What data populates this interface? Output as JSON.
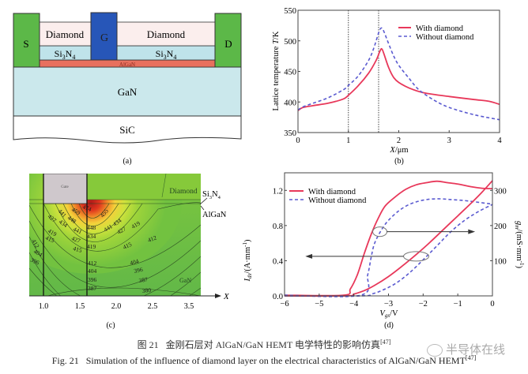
{
  "figure_a": {
    "panel_label": "(a)",
    "layers": {
      "source": "S",
      "gate": "G",
      "drain": "D",
      "diamond_left": "Diamond",
      "diamond_right": "Diamond",
      "si3n4_left": "Si",
      "si3n4_right": "Si",
      "si3n4_sub1": "3",
      "si3n4_N": "N",
      "si3n4_sub2": "4",
      "algan": "AlGaN",
      "gan": "GaN",
      "sic": "SiC"
    },
    "colors": {
      "contact": "#5cb848",
      "gate": "#2756b8",
      "diamond": "#fbeeed",
      "si3n4": "#bfe3ea",
      "algan": "#e8705e",
      "gan": "#cbe8ec",
      "sic": "#ffffff"
    }
  },
  "figure_c": {
    "panel_label": "(c)",
    "gate_label": "Gate",
    "diamond_label": "Diamond",
    "si3n4_label": "Si",
    "si3n4_sub1": "3",
    "si3n4_N": "N",
    "si3n4_sub2": "4",
    "algan_label": "AlGaN",
    "gan_label": "GaN",
    "x_axis_label": "X",
    "x_ticks": [
      "1.0",
      "1.5",
      "2.0",
      "2.5",
      "3.5"
    ],
    "contour_labels": [
      "412",
      "404",
      "396",
      "427",
      "419",
      "415",
      "441",
      "434",
      "448",
      "459",
      "474",
      "455",
      "448",
      "441",
      "434",
      "427",
      "419",
      "415",
      "412",
      "404",
      "396",
      "387",
      "380",
      "412",
      "404",
      "396",
      "387",
      "441",
      "427",
      "419",
      "427",
      "434",
      "419",
      "415",
      "412"
    ]
  },
  "chart_data": [
    {
      "id": "b",
      "type": "line",
      "panel_label": "(b)",
      "title": "",
      "xlabel_italic": "X",
      "xlabel_unit": "/μm",
      "ylabel_prefix": "Lattice temperature ",
      "ylabel_italic": "T",
      "ylabel_unit": "/K",
      "xlim": [
        0,
        4
      ],
      "ylim": [
        350,
        550
      ],
      "x_ticks": [
        0,
        1,
        2,
        3,
        4
      ],
      "y_ticks": [
        350,
        400,
        450,
        500,
        550
      ],
      "vlines": [
        1.0,
        1.6
      ],
      "legend_position": "top-right",
      "series": [
        {
          "name": "With diamond",
          "style": "solid",
          "color": "#e8385a",
          "x": [
            0,
            0.1,
            0.3,
            0.6,
            0.9,
            1.0,
            1.2,
            1.4,
            1.55,
            1.62,
            1.66,
            1.7,
            1.8,
            1.9,
            2.0,
            2.2,
            2.5,
            3.0,
            3.5,
            3.8,
            4.0
          ],
          "y": [
            386,
            391,
            394,
            398,
            405,
            411,
            427,
            447,
            468,
            482,
            487,
            480,
            456,
            440,
            432,
            423,
            415,
            409,
            404,
            401,
            396
          ]
        },
        {
          "name": "Without diamond",
          "style": "dashed",
          "color": "#5a5ad0",
          "x": [
            0,
            0.1,
            0.3,
            0.6,
            0.9,
            1.0,
            1.2,
            1.4,
            1.5,
            1.6,
            1.65,
            1.7,
            1.8,
            1.9,
            2.0,
            2.2,
            2.4,
            2.7,
            3.0,
            3.5,
            4.0
          ],
          "y": [
            387,
            392,
            398,
            407,
            420,
            427,
            443,
            468,
            487,
            513,
            521,
            516,
            495,
            475,
            460,
            439,
            420,
            403,
            391,
            379,
            371
          ]
        }
      ]
    },
    {
      "id": "d",
      "type": "line",
      "panel_label": "(d)",
      "title": "",
      "xlabel_italic": "V",
      "xlabel_sub": "gs",
      "xlabel_unit": "/V",
      "ylabel_left_italic": "I",
      "ylabel_left_sub": "ds",
      "ylabel_left_unit": "/(A·mm",
      "ylabel_left_exp": "-1",
      "ylabel_left_close": ")",
      "ylabel_right_italic": "g",
      "ylabel_right_sub": "m",
      "ylabel_right_unit": "/(mS·mm",
      "ylabel_right_exp": "-1",
      "ylabel_right_close": ")",
      "xlim": [
        -6,
        0
      ],
      "ylim_left": [
        0,
        1.4
      ],
      "ylim_right": [
        0,
        350
      ],
      "x_ticks": [
        -6,
        -5,
        -4,
        -3,
        -2,
        -1,
        0
      ],
      "x_tick_labels": [
        "−6",
        "−5",
        "−4",
        "−3",
        "−2",
        "−1",
        "0"
      ],
      "y_left_ticks": [
        0.0,
        0.4,
        0.8,
        1.2
      ],
      "y_left_tick_labels": [
        "0.0",
        "0.4",
        "0.8",
        "1.2"
      ],
      "y_right_ticks": [
        100,
        200,
        300
      ],
      "legend_position": "top-left",
      "series": [
        {
          "name": "With diamond",
          "role": "gm",
          "axis": "right",
          "style": "solid",
          "color": "#e8385a",
          "x": [
            -6,
            -4.3,
            -4.1,
            -3.9,
            -3.7,
            -3.5,
            -3.3,
            -3.1,
            -2.8,
            -2.5,
            -2.2,
            -1.9,
            -1.6,
            -1.3,
            -1.0,
            -0.6,
            -0.3,
            0
          ],
          "y": [
            2,
            2,
            20,
            60,
            120,
            175,
            220,
            255,
            282,
            303,
            316,
            322,
            326,
            322,
            318,
            310,
            306,
            305
          ]
        },
        {
          "name": "Without diamond",
          "role": "gm",
          "axis": "right",
          "style": "dashed",
          "color": "#5a5ad0",
          "x": [
            -6,
            -3.8,
            -3.6,
            -3.5,
            -3.4,
            -3.2,
            -3.0,
            -2.7,
            -2.4,
            -2.1,
            -1.8,
            -1.5,
            -1.2,
            -0.8,
            -0.4,
            0
          ],
          "y": [
            2,
            2,
            60,
            110,
            150,
            188,
            215,
            242,
            260,
            270,
            275,
            276,
            274,
            271,
            266,
            261
          ]
        },
        {
          "name": "With diamond",
          "role": "Ids",
          "axis": "left",
          "style": "solid",
          "color": "#e8385a",
          "x": [
            -6,
            -4.2,
            -4.0,
            -3.7,
            -3.4,
            -3.0,
            -2.6,
            -2.2,
            -1.8,
            -1.4,
            -1.0,
            -0.6,
            -0.3,
            0
          ],
          "y": [
            0.0,
            0.0,
            0.02,
            0.06,
            0.12,
            0.22,
            0.34,
            0.47,
            0.61,
            0.76,
            0.91,
            1.06,
            1.18,
            1.31
          ]
        },
        {
          "name": "Without diamond",
          "role": "Ids",
          "axis": "left",
          "style": "dashed",
          "color": "#5a5ad0",
          "x": [
            -6,
            -3.8,
            -3.5,
            -3.2,
            -2.8,
            -2.4,
            -2.0,
            -1.6,
            -1.2,
            -0.8,
            -0.4,
            0
          ],
          "y": [
            0.0,
            0.0,
            0.02,
            0.06,
            0.14,
            0.26,
            0.41,
            0.57,
            0.73,
            0.86,
            0.96,
            1.04
          ]
        }
      ],
      "annotations": [
        {
          "type": "ellipse-arrow",
          "points_to": "right axis (gm)",
          "at_x": -3.25,
          "at_y_left": 0.73
        },
        {
          "type": "ellipse-arrow",
          "points_to": "left axis (Ids)",
          "at_x": -2.2,
          "at_y_left": 0.45
        }
      ]
    }
  ],
  "caption": {
    "zh_prefix": "图 21",
    "zh_text": "金刚石层对 AlGaN/GaN HEMT 电学特性的影响仿真",
    "ref": "[47]",
    "en_prefix": "Fig. 21",
    "en_text": "Simulation of the influence of diamond layer on the electrical characteristics of AlGaN/GaN HEMT"
  },
  "watermark": {
    "icon": "wechat-icon",
    "text": "半导体在线"
  }
}
